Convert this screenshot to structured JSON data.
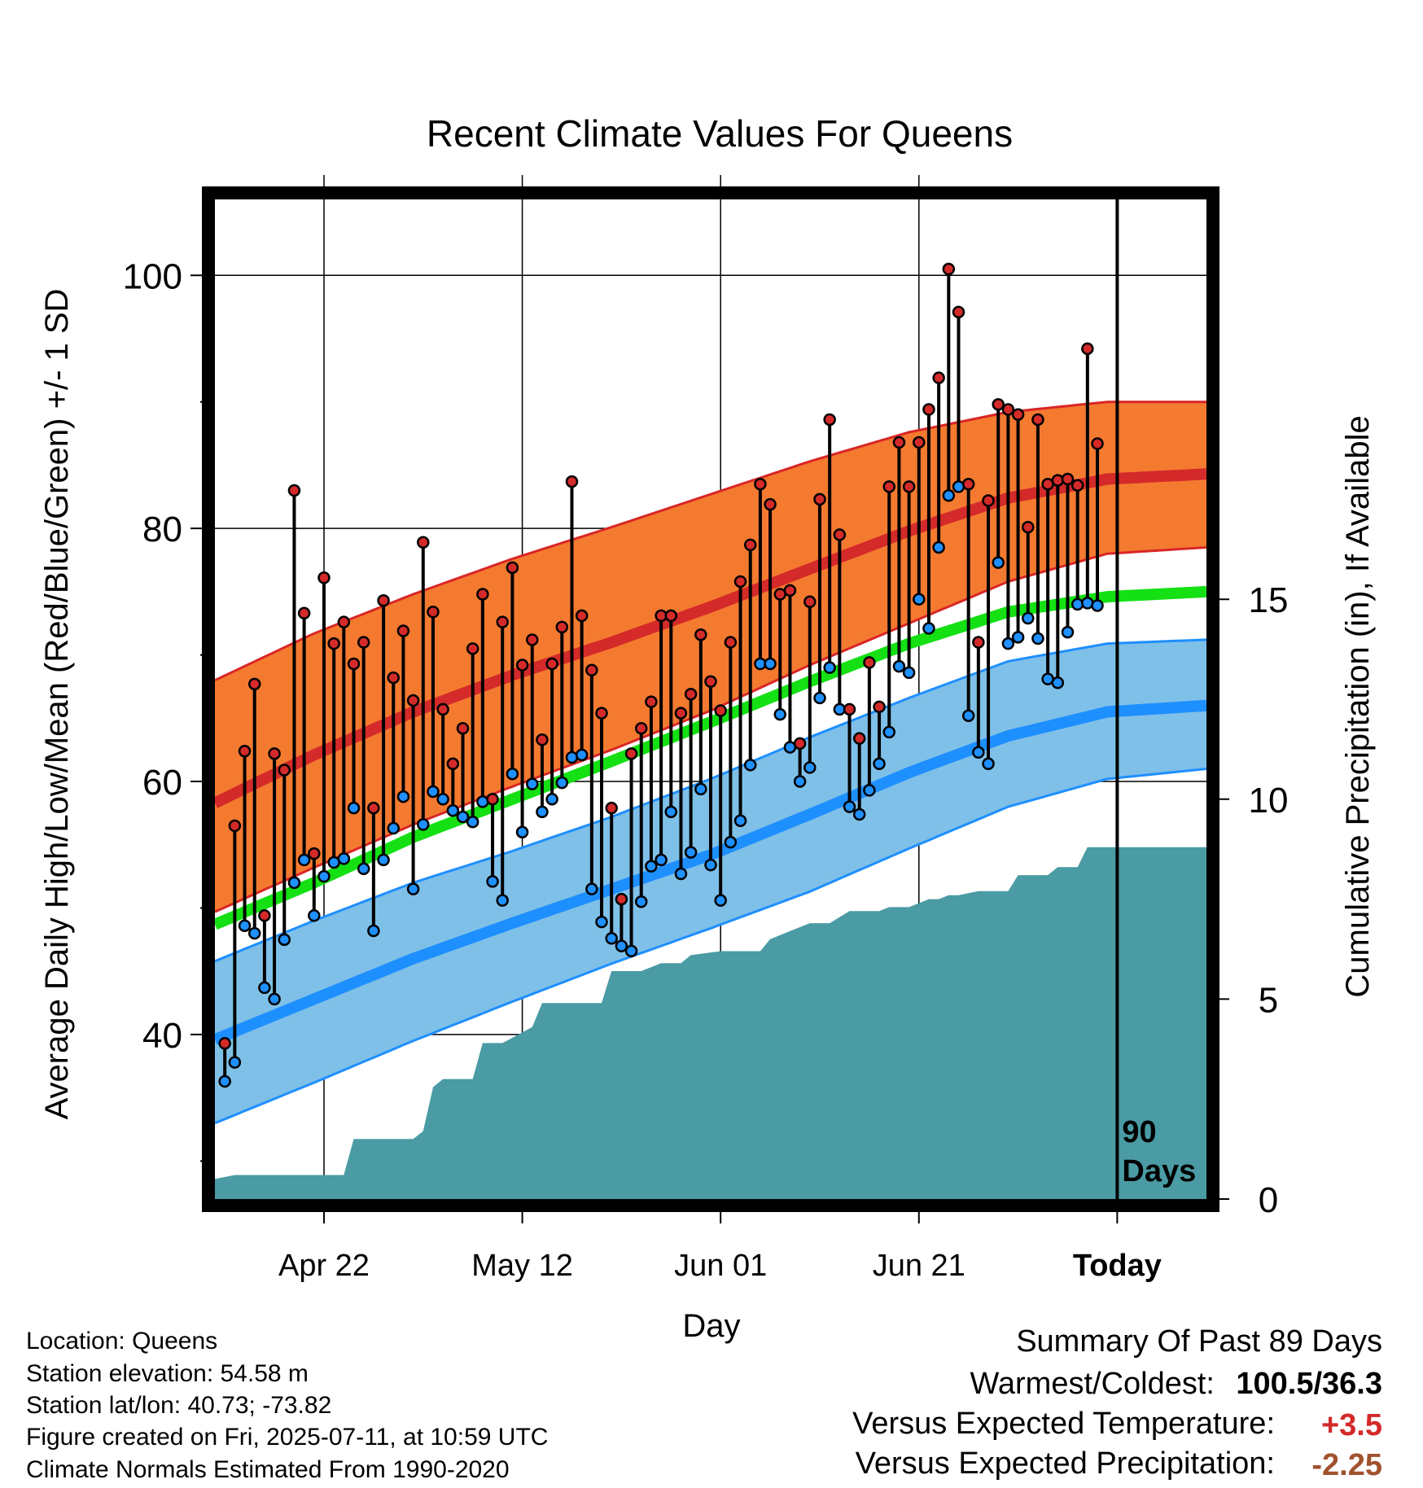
{
  "title": "Recent Climate Values For Queens",
  "colors": {
    "high_band": "#f47a30",
    "high_band_edge": "#d92626",
    "high_mean": "#d42a2a",
    "mean_line": "#14e014",
    "low_band": "#7fc0e8",
    "low_band_edge": "#1e8fff",
    "low_mean": "#1e8fff",
    "precip": "#4a9ba4",
    "high_dot": "#d42a2a",
    "low_dot": "#1e90ff",
    "warm_text": "#d42a2a",
    "precip_text": "#a0522d"
  },
  "chart_data": {
    "type": "line",
    "title": "Recent Climate Values For Queens",
    "xlabel": "Day",
    "ylabel": "Average Daily High/Low/Mean (Red/Blue/Green) +/- 1 SD",
    "y2label": "Cumulative Precipitation (in), If Available",
    "x_range_days": [
      -90,
      10
    ],
    "x_ticks": [
      {
        "day": -79,
        "label": "Apr 22"
      },
      {
        "day": -59,
        "label": "May 12"
      },
      {
        "day": -39,
        "label": "Jun 01"
      },
      {
        "day": -19,
        "label": "Jun 21"
      },
      {
        "day": 1,
        "label": "Today"
      }
    ],
    "ylim": [
      27,
      106
    ],
    "y_ticks": [
      40,
      60,
      80,
      100
    ],
    "y2lim": [
      0,
      25
    ],
    "y2_ticks": [
      0,
      5,
      10,
      15
    ],
    "grid": true,
    "today_marker": {
      "day": 1,
      "label_line1": "90",
      "label_line2": "Days"
    },
    "normals": {
      "days": [
        -90,
        -80,
        -70,
        -60,
        -50,
        -40,
        -30,
        -20,
        -10,
        0,
        10
      ],
      "high_mean": [
        58.3,
        62.1,
        65.5,
        68.4,
        71.0,
        73.8,
        76.8,
        79.8,
        82.4,
        83.9,
        84.3
      ],
      "high_sd_upper": [
        68.0,
        71.7,
        74.8,
        77.6,
        80.1,
        82.7,
        85.3,
        87.6,
        89.2,
        90.0,
        90.0
      ],
      "high_sd_lower": [
        49.7,
        53.2,
        56.6,
        59.6,
        62.5,
        65.6,
        69.2,
        72.5,
        75.8,
        78.0,
        78.5
      ],
      "mean": [
        48.7,
        52.0,
        55.6,
        58.6,
        61.6,
        64.7,
        67.9,
        70.9,
        73.4,
        74.6,
        75.0
      ],
      "low_mean": [
        39.6,
        42.8,
        46.0,
        48.8,
        51.5,
        54.2,
        57.4,
        60.7,
        63.6,
        65.5,
        66.0
      ],
      "low_sd_upper": [
        45.8,
        49.0,
        52.0,
        54.5,
        57.2,
        60.2,
        63.5,
        66.6,
        69.5,
        70.9,
        71.2
      ],
      "low_sd_lower": [
        33.0,
        36.2,
        39.5,
        42.6,
        45.6,
        48.4,
        51.3,
        54.7,
        58.0,
        60.2,
        61.0
      ]
    },
    "series": [
      {
        "name": "High",
        "days": [
          -89,
          -88,
          -87,
          -86,
          -85,
          -84,
          -83,
          -82,
          -81,
          -80,
          -79,
          -78,
          -77,
          -76,
          -75,
          -74,
          -73,
          -72,
          -71,
          -70,
          -69,
          -68,
          -67,
          -66,
          -65,
          -64,
          -63,
          -62,
          -61,
          -60,
          -59,
          -58,
          -57,
          -56,
          -55,
          -54,
          -53,
          -52,
          -51,
          -50,
          -49,
          -48,
          -47,
          -46,
          -45,
          -44,
          -43,
          -42,
          -41,
          -40,
          -39,
          -38,
          -37,
          -36,
          -35,
          -34,
          -33,
          -32,
          -31,
          -30,
          -29,
          -28,
          -27,
          -26,
          -25,
          -24,
          -23,
          -22,
          -21,
          -20,
          -19,
          -18,
          -17,
          -16,
          -15,
          -14,
          -13,
          -12,
          -11,
          -10,
          -9,
          -8,
          -7,
          -6,
          -5,
          -4,
          -3,
          -2,
          -1
        ],
        "values": [
          39.3,
          56.5,
          62.4,
          67.7,
          49.4,
          62.2,
          60.9,
          83.0,
          73.3,
          54.3,
          76.1,
          70.9,
          72.6,
          69.3,
          71.0,
          57.9,
          74.3,
          68.2,
          71.9,
          66.4,
          78.9,
          73.4,
          65.7,
          61.4,
          64.2,
          70.5,
          74.8,
          58.6,
          72.6,
          76.9,
          69.2,
          71.2,
          63.3,
          69.3,
          72.2,
          83.7,
          73.1,
          68.8,
          65.4,
          57.9,
          50.7,
          62.2,
          64.2,
          66.3,
          73.1,
          73.1,
          65.4,
          66.9,
          71.6,
          67.9,
          65.6,
          71.0,
          75.8,
          78.7,
          83.5,
          81.9,
          74.8,
          75.1,
          63.0,
          74.2,
          82.3,
          88.6,
          79.5,
          65.7,
          63.4,
          69.4,
          65.9,
          83.3,
          86.8,
          83.3,
          86.8,
          89.4,
          91.9,
          100.5,
          97.1,
          83.5,
          71.0,
          82.2,
          89.8,
          89.4,
          89.0,
          80.1,
          88.6,
          83.5,
          83.8,
          83.9,
          83.4,
          94.2,
          86.7
        ]
      },
      {
        "name": "Low",
        "days": [
          -89,
          -88,
          -87,
          -86,
          -85,
          -84,
          -83,
          -82,
          -81,
          -80,
          -79,
          -78,
          -77,
          -76,
          -75,
          -74,
          -73,
          -72,
          -71,
          -70,
          -69,
          -68,
          -67,
          -66,
          -65,
          -64,
          -63,
          -62,
          -61,
          -60,
          -59,
          -58,
          -57,
          -56,
          -55,
          -54,
          -53,
          -52,
          -51,
          -50,
          -49,
          -48,
          -47,
          -46,
          -45,
          -44,
          -43,
          -42,
          -41,
          -40,
          -39,
          -38,
          -37,
          -36,
          -35,
          -34,
          -33,
          -32,
          -31,
          -30,
          -29,
          -28,
          -27,
          -26,
          -25,
          -24,
          -23,
          -22,
          -21,
          -20,
          -19,
          -18,
          -17,
          -16,
          -15,
          -14,
          -13,
          -12,
          -11,
          -10,
          -9,
          -8,
          -7,
          -6,
          -5,
          -4,
          -3,
          -2,
          -1
        ],
        "values": [
          36.3,
          37.8,
          48.6,
          48.0,
          43.7,
          42.8,
          47.5,
          52.0,
          53.8,
          49.4,
          52.5,
          53.6,
          53.9,
          57.9,
          53.1,
          48.2,
          53.8,
          56.3,
          58.8,
          51.5,
          56.6,
          59.2,
          58.6,
          57.7,
          57.2,
          56.8,
          58.4,
          52.1,
          50.6,
          60.6,
          56.0,
          59.8,
          57.6,
          58.6,
          59.9,
          61.9,
          62.1,
          51.5,
          48.9,
          47.6,
          47.0,
          46.6,
          50.5,
          53.3,
          53.8,
          57.6,
          52.7,
          54.4,
          59.4,
          53.4,
          50.6,
          55.2,
          56.9,
          61.3,
          69.3,
          69.3,
          65.3,
          62.7,
          60.0,
          61.1,
          66.6,
          69.0,
          65.7,
          58.0,
          57.4,
          59.3,
          61.4,
          63.9,
          69.1,
          68.6,
          74.4,
          72.1,
          78.5,
          82.6,
          83.3,
          65.2,
          62.3,
          61.4,
          77.3,
          70.9,
          71.4,
          72.9,
          71.3,
          68.1,
          67.8,
          71.8,
          74.0,
          74.1,
          73.9
        ]
      }
    ],
    "precip": {
      "days": [
        -90,
        -88,
        -77,
        -76,
        -70,
        -69,
        -68,
        -67,
        -64,
        -63,
        -61,
        -58,
        -57,
        -51,
        -50,
        -47,
        -45,
        -43,
        -42,
        -39,
        -35,
        -34,
        -32,
        -30,
        -28,
        -26,
        -23,
        -22,
        -20,
        -18,
        -17,
        -16,
        -15,
        -13,
        -10,
        -9,
        -6,
        -5,
        -3,
        -2,
        10
      ],
      "values": [
        0.5,
        0.6,
        0.6,
        1.5,
        1.5,
        1.7,
        2.8,
        3.0,
        3.0,
        3.9,
        3.9,
        4.3,
        4.9,
        4.9,
        5.7,
        5.7,
        5.9,
        5.9,
        6.1,
        6.2,
        6.2,
        6.5,
        6.7,
        6.9,
        6.9,
        7.2,
        7.2,
        7.3,
        7.3,
        7.5,
        7.5,
        7.6,
        7.6,
        7.7,
        7.7,
        8.1,
        8.1,
        8.3,
        8.3,
        8.8,
        8.8
      ]
    }
  },
  "footer_left": [
    "Location: Queens",
    "Station elevation: 54.58 m",
    "Station lat/lon: 40.73; -73.82",
    "Figure created on Fri, 2025-07-11, at 10:59 UTC",
    "Climate Normals Estimated From 1990-2020"
  ],
  "summary": {
    "heading": "Summary Of Past 89 Days",
    "warm_cold_label": "Warmest/Coldest:",
    "warm_cold_value": "100.5/36.3",
    "temp_label": "Versus Expected Temperature:",
    "temp_value": "+3.5",
    "precip_label": "Versus Expected Precipitation:",
    "precip_value": "-2.25"
  }
}
